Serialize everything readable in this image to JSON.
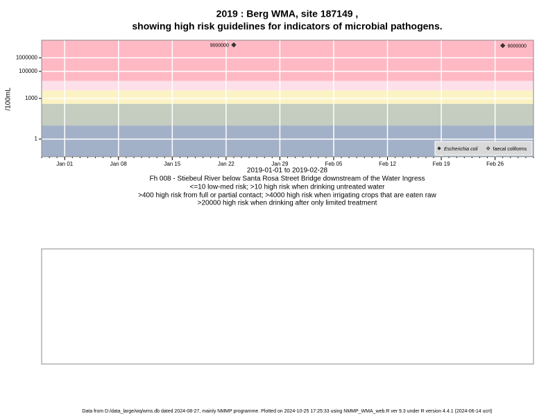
{
  "chart_data": {
    "type": "scatter",
    "title": "2019 : Berg WMA, site 187149 ,",
    "subtitle": "showing high risk guidelines for indicators of microbial pathogens.",
    "y_label": "/100mL",
    "x_label": "2019-01-01 to 2019-02-28",
    "notes": [
      "Fh 008 - Stiebeul River below Santa Rosa Street Bridge downstream of the Water Ingress",
      "<=10 low-med risk; >10 high risk when drinking untreated water",
      ">400 high risk from full or partial contact; >4000 high risk when irrigating crops that are eaten raw",
      ">20000 high risk when drinking after only limited treatment"
    ],
    "footer": "Data from D:/data_large/wq/wms.db dated 2024-08-27, mainly NMMP programme. Plotted on 2024-10-25 17:25:33 using NMMP_WMA_web.R ver 9.3 under R version 4.4.1 (2024-06-14 ucrt)",
    "log_y": true,
    "grid": true,
    "legend_position": "bottom-right",
    "xlim": [
      "2018-12-29",
      "2019-03-03"
    ],
    "ylim": [
      0.05,
      20000000
    ],
    "xticks": [
      {
        "value": "2019-01-01",
        "label": "Jan 01"
      },
      {
        "value": "2019-01-08",
        "label": "Jan 08"
      },
      {
        "value": "2019-01-15",
        "label": "Jan 15"
      },
      {
        "value": "2019-01-22",
        "label": "Jan 22"
      },
      {
        "value": "2019-01-29",
        "label": "Jan 29"
      },
      {
        "value": "2019-02-05",
        "label": "Feb 05"
      },
      {
        "value": "2019-02-12",
        "label": "Feb 12"
      },
      {
        "value": "2019-02-19",
        "label": "Feb 19"
      },
      {
        "value": "2019-02-26",
        "label": "Feb 26"
      }
    ],
    "yticks": [
      1,
      1000,
      100000,
      1000000
    ],
    "bands": {
      "breaks": [
        10,
        400,
        4000,
        20000
      ],
      "colors": [
        "#a3b1c8",
        "#c4cdc0",
        "#fbf3c4",
        "#fde0ea",
        "#ffb9c4"
      ]
    },
    "series": [
      {
        "name": "Escherichia coli",
        "color": "#333333",
        "marker": "filled",
        "x": [
          "2019-01-23",
          "2019-02-27"
        ],
        "values": [
          9000000,
          8000000
        ]
      },
      {
        "name": "faecal coliforms",
        "color": "#333333",
        "marker": "open",
        "x": [],
        "values": []
      }
    ]
  }
}
